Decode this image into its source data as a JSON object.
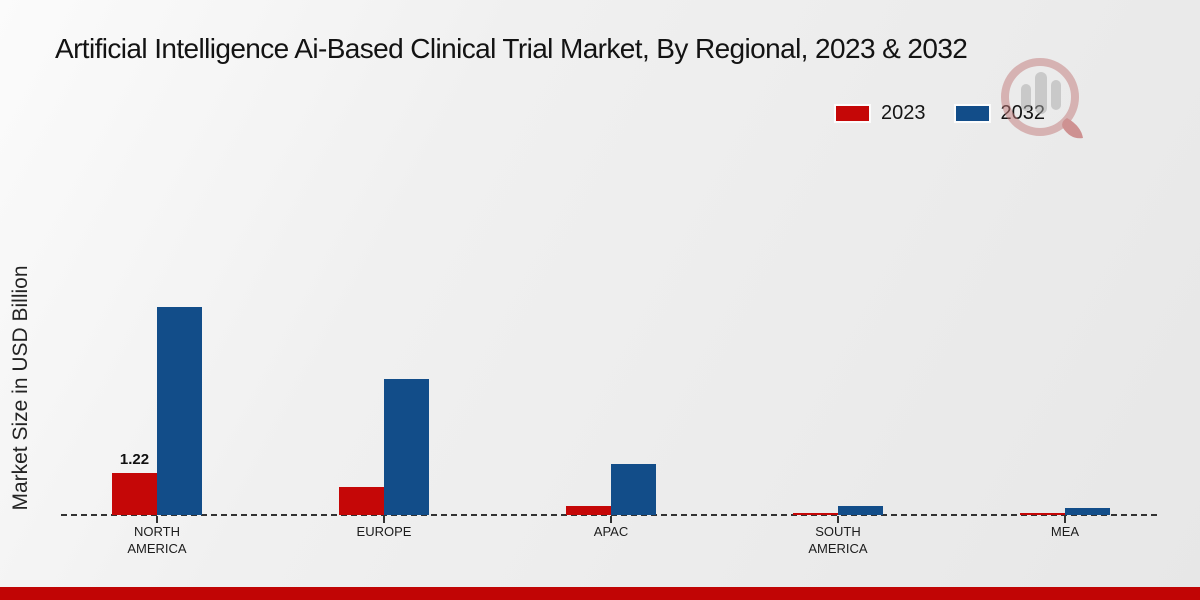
{
  "title": "Artificial Intelligence Ai-Based Clinical Trial Market, By Regional, 2023 & 2032",
  "colors": {
    "series_2023": "#c50707",
    "series_2032": "#124d89",
    "footer_bar": "#c10505",
    "baseline": "#333333"
  },
  "legend": {
    "items": [
      {
        "label": "2023",
        "color": "#c50707"
      },
      {
        "label": "2032",
        "color": "#124d89"
      }
    ]
  },
  "watermark": {
    "name": "mrfr-logo"
  },
  "chart_data": {
    "type": "bar",
    "title": "Artificial Intelligence Ai-Based Clinical Trial Market, By Regional, 2023 & 2032",
    "ylabel": "Market Size in USD Billion",
    "xlabel": "",
    "categories": [
      "NORTH AMERICA",
      "EUROPE",
      "APAC",
      "SOUTH AMERICA",
      "MEA"
    ],
    "series": [
      {
        "name": "2023",
        "color": "#c50707",
        "values": [
          1.22,
          0.81,
          0.27,
          0.06,
          0.05
        ]
      },
      {
        "name": "2032",
        "color": "#124d89",
        "values": [
          6.04,
          3.96,
          1.48,
          0.26,
          0.21
        ]
      }
    ],
    "point_labels": [
      {
        "series_index": 0,
        "category_index": 0,
        "text": "1.22"
      }
    ],
    "ylim": [
      0,
      7
    ],
    "grid": false,
    "baseline_style": "dashed",
    "legend_position": "top-right",
    "unit": "USD Billion"
  }
}
